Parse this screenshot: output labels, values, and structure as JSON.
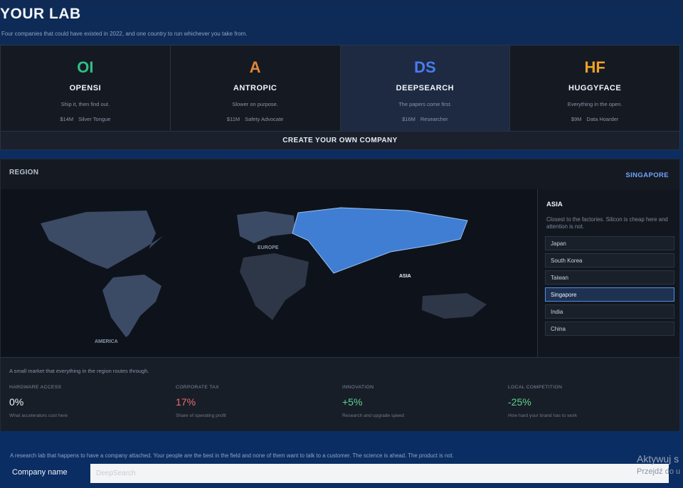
{
  "header": {
    "title": "YOUR LAB",
    "subtitle": "Four companies that could have existed in 2022, and one country to run whichever you take from."
  },
  "companies": [
    {
      "logo": "OI",
      "logo_color": "#2fbf84",
      "name": "OPENSI",
      "tagline": "Ship it, then find out.",
      "budget": "$14M",
      "trait": "Silver Tongue"
    },
    {
      "logo": "A",
      "logo_color": "#e0873a",
      "name": "ANTROPIC",
      "tagline": "Slower on purpose.",
      "budget": "$11M",
      "trait": "Safety Advocate"
    },
    {
      "logo": "DS",
      "logo_color": "#4a7cf0",
      "name": "DEEPSEARCH",
      "tagline": "The papers come first.",
      "budget": "$16M",
      "trait": "Researcher"
    },
    {
      "logo": "HF",
      "logo_color": "#f0a028",
      "name": "HUGGYFACE",
      "tagline": "Everything in the open.",
      "budget": "$9M",
      "trait": "Data Hoarder"
    }
  ],
  "selected_company_index": 2,
  "create_button": "CREATE YOUR OWN COMPANY",
  "region": {
    "label": "REGION",
    "selected_country": "SINGAPORE",
    "map_labels": {
      "europe": "EUROPE",
      "asia": "ASIA",
      "america": "AMERICA"
    },
    "area": {
      "name": "ASIA",
      "description": "Closest to the factories. Silicon is cheap here and attention is not.",
      "countries": [
        "Japan",
        "South Korea",
        "Taiwan",
        "Singapore",
        "India",
        "China"
      ],
      "active_index": 3
    },
    "colors": {
      "highlight": "#3f7ed3",
      "land": "#3b4b66",
      "land_dim": "#2e3747"
    }
  },
  "stats": {
    "note": "A small market that everything in the region routes through.",
    "items": [
      {
        "label": "HARDWARE ACCESS",
        "value": "0%",
        "desc": "What accelerators cost here",
        "tone": "neutral"
      },
      {
        "label": "CORPORATE TAX",
        "value": "17%",
        "desc": "Share of operating profit",
        "tone": "bad"
      },
      {
        "label": "INNOVATION",
        "value": "+5%",
        "desc": "Research and upgrade speed",
        "tone": "good"
      },
      {
        "label": "LOCAL COMPETITION",
        "value": "-25%",
        "desc": "How hard your brand has to work",
        "tone": "good"
      }
    ]
  },
  "footer": {
    "note": "A research lab that happens to have a company attached. Your people are the best in the field and none of them want to talk to a customer. The science is ahead. The product is not.",
    "company_name_label": "Company name",
    "company_name_placeholder": "DeepSearch",
    "company_name_value": ""
  },
  "os_overlay": {
    "activate": "Aktywuj s",
    "activate_sub": "Przejdź do u"
  }
}
